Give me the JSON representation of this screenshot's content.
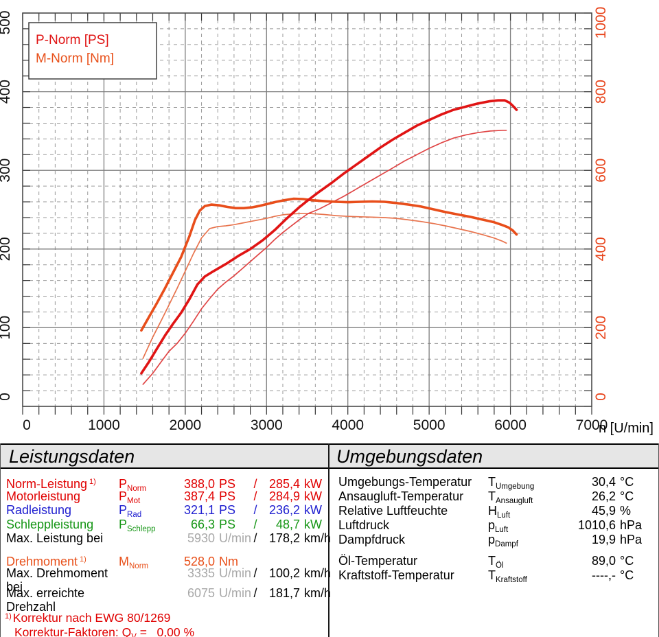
{
  "colors": {
    "power_main": "#e01414",
    "power_secondary": "#e04545",
    "torque_main": "#e84e1b",
    "torque_secondary": "#e8744e",
    "right_axis_text": "#e8431a",
    "table_red": "#e00000",
    "table_blue": "#2020d0",
    "table_green": "#169616",
    "table_orange": "#e8501a",
    "muted_gray": "#a8a8a8",
    "grid_major": "#7d7d7d",
    "grid_minor": "#9a9a9a",
    "frame": "#4a4a4a"
  },
  "chart_data": {
    "type": "line",
    "title": "",
    "x_axis": {
      "label": "n [U/min]",
      "min": 0,
      "max": 7000,
      "major_step": 1000,
      "minor_step": 200,
      "tick_labels": [
        "0",
        "1000",
        "2000",
        "3000",
        "4000",
        "5000",
        "6000",
        "7000"
      ]
    },
    "y_left": {
      "label": "P-Norm [PS]",
      "min": 0,
      "max": 500,
      "major_step": 100,
      "minor_step": 20,
      "tick_labels": [
        "0",
        "100",
        "200",
        "300",
        "400",
        "500"
      ]
    },
    "y_right": {
      "label": "M-Norm [Nm]",
      "min": 0,
      "max": 1000,
      "major_step": 200,
      "minor_step": 40,
      "tick_labels": [
        "0",
        "200",
        "400",
        "600",
        "800",
        "1000"
      ]
    },
    "legend": {
      "line1": "P-Norm [PS]",
      "line2": "M-Norm [Nm]"
    },
    "grid": "major-solid, minor-dashed",
    "legend_position": "top-left",
    "series": [
      {
        "id": "torque-secondary",
        "name": "M secondary (thin)",
        "axis": "right",
        "color": "#e8744e",
        "width": 1.7,
        "points": [
          [
            1480,
            122
          ],
          [
            1600,
            176
          ],
          [
            1700,
            216
          ],
          [
            1800,
            258
          ],
          [
            1900,
            300
          ],
          [
            2000,
            344
          ],
          [
            2100,
            388
          ],
          [
            2200,
            428
          ],
          [
            2300,
            452
          ],
          [
            2400,
            457
          ],
          [
            2500,
            459
          ],
          [
            2600,
            462
          ],
          [
            2700,
            466
          ],
          [
            2800,
            470
          ],
          [
            2900,
            474
          ],
          [
            3000,
            478
          ],
          [
            3100,
            483
          ],
          [
            3200,
            487
          ],
          [
            3300,
            489
          ],
          [
            3400,
            490
          ],
          [
            3550,
            490
          ],
          [
            3700,
            488
          ],
          [
            3850,
            485
          ],
          [
            4000,
            483
          ],
          [
            4150,
            482
          ],
          [
            4300,
            481
          ],
          [
            4450,
            480
          ],
          [
            4600,
            478
          ],
          [
            4750,
            474
          ],
          [
            4900,
            470
          ],
          [
            5050,
            465
          ],
          [
            5200,
            459
          ],
          [
            5350,
            452
          ],
          [
            5500,
            445
          ],
          [
            5650,
            437
          ],
          [
            5800,
            428
          ],
          [
            5900,
            420
          ],
          [
            5950,
            415
          ]
        ]
      },
      {
        "id": "power-secondary",
        "name": "P secondary (thin)",
        "axis": "left",
        "color": "#e04545",
        "width": 1.7,
        "points": [
          [
            1480,
            28
          ],
          [
            1600,
            42
          ],
          [
            1700,
            56
          ],
          [
            1800,
            70
          ],
          [
            1900,
            80
          ],
          [
            2000,
            93
          ],
          [
            2100,
            108
          ],
          [
            2200,
            124
          ],
          [
            2300,
            137
          ],
          [
            2400,
            149
          ],
          [
            2500,
            158
          ],
          [
            2600,
            166
          ],
          [
            2700,
            175
          ],
          [
            2800,
            184
          ],
          [
            2900,
            193
          ],
          [
            3000,
            202
          ],
          [
            3100,
            212
          ],
          [
            3200,
            221
          ],
          [
            3300,
            229
          ],
          [
            3400,
            237
          ],
          [
            3510,
            245
          ],
          [
            3650,
            251
          ],
          [
            3800,
            259
          ],
          [
            3950,
            267
          ],
          [
            4100,
            276
          ],
          [
            4250,
            285
          ],
          [
            4400,
            294
          ],
          [
            4550,
            303
          ],
          [
            4700,
            312
          ],
          [
            4850,
            320
          ],
          [
            5000,
            328
          ],
          [
            5150,
            335
          ],
          [
            5300,
            341
          ],
          [
            5450,
            345
          ],
          [
            5600,
            348
          ],
          [
            5750,
            350
          ],
          [
            5900,
            351
          ],
          [
            5950,
            351
          ]
        ]
      },
      {
        "id": "torque-main",
        "name": "M-Norm [Nm]",
        "axis": "right",
        "color": "#e84e1b",
        "width": 3.6,
        "points": [
          [
            1460,
            193
          ],
          [
            1550,
            226
          ],
          [
            1650,
            262
          ],
          [
            1750,
            300
          ],
          [
            1850,
            340
          ],
          [
            1950,
            380
          ],
          [
            2050,
            432
          ],
          [
            2120,
            474
          ],
          [
            2180,
            498
          ],
          [
            2240,
            509
          ],
          [
            2320,
            513
          ],
          [
            2420,
            511
          ],
          [
            2520,
            507
          ],
          [
            2620,
            504
          ],
          [
            2720,
            504
          ],
          [
            2820,
            506
          ],
          [
            2920,
            510
          ],
          [
            3020,
            515
          ],
          [
            3120,
            520
          ],
          [
            3220,
            524
          ],
          [
            3335,
            528
          ],
          [
            3450,
            527
          ],
          [
            3560,
            524
          ],
          [
            3700,
            522
          ],
          [
            3850,
            520
          ],
          [
            4000,
            519
          ],
          [
            4150,
            520
          ],
          [
            4300,
            521
          ],
          [
            4450,
            520
          ],
          [
            4600,
            517
          ],
          [
            4750,
            513
          ],
          [
            4900,
            508
          ],
          [
            5050,
            501
          ],
          [
            5200,
            494
          ],
          [
            5350,
            488
          ],
          [
            5500,
            482
          ],
          [
            5650,
            475
          ],
          [
            5800,
            468
          ],
          [
            5900,
            461
          ],
          [
            5975,
            455
          ],
          [
            6030,
            447
          ],
          [
            6075,
            437
          ]
        ]
      },
      {
        "id": "power-main",
        "name": "P-Norm [PS]",
        "axis": "left",
        "color": "#e01414",
        "width": 3.6,
        "points": [
          [
            1460,
            42
          ],
          [
            1550,
            56
          ],
          [
            1650,
            73
          ],
          [
            1750,
            90
          ],
          [
            1850,
            105
          ],
          [
            1950,
            119
          ],
          [
            2050,
            136
          ],
          [
            2150,
            155
          ],
          [
            2240,
            165
          ],
          [
            2350,
            172
          ],
          [
            2500,
            181
          ],
          [
            2650,
            191
          ],
          [
            2800,
            200
          ],
          [
            2950,
            211
          ],
          [
            3100,
            224
          ],
          [
            3250,
            239
          ],
          [
            3400,
            253
          ],
          [
            3510,
            262
          ],
          [
            3650,
            273
          ],
          [
            3800,
            284
          ],
          [
            3950,
            296
          ],
          [
            4100,
            307
          ],
          [
            4250,
            318
          ],
          [
            4400,
            329
          ],
          [
            4550,
            339
          ],
          [
            4700,
            348
          ],
          [
            4850,
            357
          ],
          [
            5000,
            364
          ],
          [
            5150,
            371
          ],
          [
            5300,
            377
          ],
          [
            5450,
            381
          ],
          [
            5600,
            385
          ],
          [
            5750,
            388
          ],
          [
            5850,
            389
          ],
          [
            5930,
            389
          ],
          [
            5990,
            386
          ],
          [
            6040,
            381
          ],
          [
            6075,
            377
          ]
        ]
      }
    ],
    "annotations": {
      "max_power_ps": 388.0,
      "max_power_rpm": 5930,
      "max_torque_nm": 528.0,
      "max_torque_rpm": 3335,
      "max_rpm": 6075
    }
  },
  "performance": {
    "title": "Leistungsdaten",
    "rows": [
      {
        "label": "Norm-Leistung",
        "sup": "1)",
        "sym": "P",
        "sub": "Norm",
        "v1": "388,0",
        "u1": "PS",
        "slash": "/",
        "v2": "285,4",
        "u2": "kW"
      },
      {
        "label": "Motorleistung",
        "sym": "P",
        "sub": "Mot",
        "v1": "387,4",
        "u1": "PS",
        "slash": "/",
        "v2": "284,9",
        "u2": "kW"
      },
      {
        "label": "Radleistung",
        "sym": "P",
        "sub": "Rad",
        "v1": "321,1",
        "u1": "PS",
        "slash": "/",
        "v2": "236,2",
        "u2": "kW"
      },
      {
        "label": "Schleppleistung",
        "sym": "P",
        "sub": "Schlepp",
        "v1": "66,3",
        "u1": "PS",
        "slash": "/",
        "v2": "48,7",
        "u2": "kW"
      },
      {
        "label": "Max. Leistung bei",
        "sym": "",
        "sub": "",
        "v1": "5930",
        "u1": "U/min",
        "slash": "/",
        "v2": "178,2",
        "u2": "km/h"
      },
      {
        "label": "Drehmoment",
        "sup": "1)",
        "sym": "M",
        "sub": "Norm",
        "v1": "528,0",
        "u1": "Nm",
        "slash": "",
        "v2": "",
        "u2": ""
      },
      {
        "label": "Max. Drehmoment bei",
        "sym": "",
        "sub": "",
        "v1": "3335",
        "u1": "U/min",
        "slash": "/",
        "v2": "100,2",
        "u2": "km/h"
      },
      {
        "label": "Max. erreichte Drehzahl",
        "sym": "",
        "sub": "",
        "v1": "6075",
        "u1": "U/min",
        "slash": "/",
        "v2": "181,7",
        "u2": "km/h"
      }
    ],
    "footnote1_sup": "1)",
    "footnote1": "Korrektur nach EWG 80/1269",
    "footnote2_prefix": "Korrektur-Faktoren: Q",
    "footnote2_sub": "V",
    "footnote2_suffix": " =   0,00 %"
  },
  "environment": {
    "title": "Umgebungsdaten",
    "rows": [
      {
        "label": "Umgebungs-Temperatur",
        "sym": "T",
        "sub": "Umgebung",
        "val": "30,4",
        "unit": "°C"
      },
      {
        "label": "Ansaugluft-Temperatur",
        "sym": "T",
        "sub": "Ansaugluft",
        "val": "26,2",
        "unit": "°C"
      },
      {
        "label": "Relative Luftfeuchte",
        "sym": "H",
        "sub": "Luft",
        "val": "45,9",
        "unit": "%"
      },
      {
        "label": "Luftdruck",
        "sym": "p",
        "sub": "Luft",
        "val": "1010,6",
        "unit": "hPa"
      },
      {
        "label": "Dampfdruck",
        "sym": "p",
        "sub": "Dampf",
        "val": "19,9",
        "unit": "hPa"
      },
      {
        "label": "Öl-Temperatur",
        "sym": "T",
        "sub": "Öl",
        "val": "89,0",
        "unit": "°C"
      },
      {
        "label": "Kraftstoff-Temperatur",
        "sym": "T",
        "sub": "Kraftstoff",
        "val": "----,-",
        "unit": "°C"
      }
    ]
  }
}
